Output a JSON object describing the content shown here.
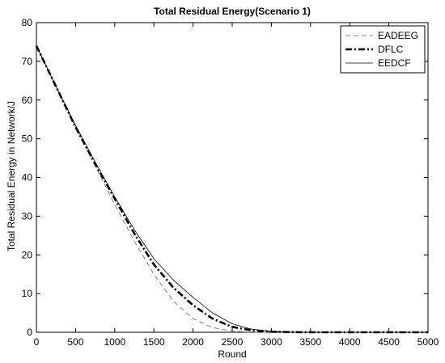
{
  "chart_data": {
    "type": "line",
    "title": "Total Residual Energy(Scenario 1)",
    "xlabel": "Round",
    "ylabel": "Total Residual Energy in Network/J",
    "xlim": [
      0,
      5000
    ],
    "ylim": [
      0,
      80
    ],
    "xticks": [
      "0",
      "500",
      "1000",
      "1500",
      "2000",
      "2500",
      "3000",
      "3500",
      "4000",
      "4500",
      "5000"
    ],
    "yticks": [
      "0",
      "10",
      "20",
      "30",
      "40",
      "50",
      "60",
      "70",
      "80"
    ],
    "grid": false,
    "legend_position": "top-right",
    "series": [
      {
        "name": "EADEEG",
        "style": "dashed",
        "color": "#808080",
        "x": [
          0,
          250,
          500,
          750,
          1000,
          1250,
          1500,
          1750,
          2000,
          2250,
          2500,
          2750,
          3000,
          3250,
          3500,
          4000,
          4500,
          5000
        ],
        "y": [
          74,
          63.5,
          53,
          43,
          33,
          23.5,
          15,
          8,
          3.5,
          1.2,
          0.3,
          0.05,
          0,
          0,
          0,
          0,
          0,
          0
        ]
      },
      {
        "name": "DFLC",
        "style": "dashdot",
        "color": "#000000",
        "x": [
          0,
          250,
          500,
          750,
          1000,
          1250,
          1500,
          1750,
          2000,
          2250,
          2500,
          2750,
          3000,
          3250,
          3500,
          4000,
          4500,
          5000
        ],
        "y": [
          74,
          63.5,
          53,
          43.5,
          34.5,
          25.5,
          17.5,
          11.5,
          7,
          3.5,
          1.4,
          0.5,
          0.15,
          0.05,
          0,
          0,
          0,
          0
        ]
      },
      {
        "name": "EEDCF",
        "style": "solid",
        "color": "#000000",
        "x": [
          0,
          250,
          500,
          750,
          1000,
          1250,
          1500,
          1750,
          2000,
          2250,
          2500,
          2750,
          3000,
          3250,
          3500,
          4000,
          4500,
          5000
        ],
        "y": [
          74,
          63.5,
          53.5,
          44,
          35,
          26.5,
          19,
          13.5,
          9,
          5,
          2.2,
          0.8,
          0.25,
          0.05,
          0,
          0,
          0,
          0
        ]
      }
    ]
  }
}
